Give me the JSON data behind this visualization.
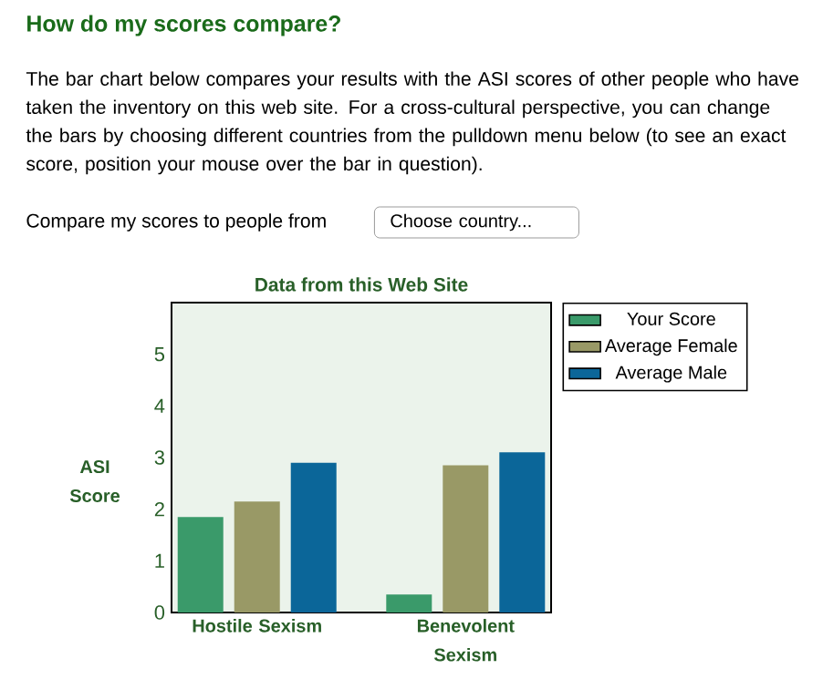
{
  "chart_data": {
    "type": "bar",
    "title": "How do my scores compare?",
    "subtitle": "Data from this Web Site",
    "annotations": [
      "The bar chart below compares your results with the ASI scores of other people who have taken the inventory on this web site. For a cross-cultural perspective, you can change the bars by choosing different countries from the pulldown menu below (to see an exact score, position your mouse over the bar in question).",
      "Compare my scores to people from",
      "Choose country..."
    ],
    "categories": [
      "Hostile Sexism",
      "Benevolent Sexism"
    ],
    "series": [
      {
        "name": "Your Score",
        "color": "#3a9a6a",
        "values": [
          1.85,
          0.35
        ]
      },
      {
        "name": "Average Female",
        "color": "#999966",
        "values": [
          2.15,
          2.85
        ]
      },
      {
        "name": "Average Male",
        "color": "#0b6699",
        "values": [
          2.9,
          3.1
        ]
      }
    ],
    "ylabel": "ASI Score",
    "ylim": [
      0,
      6
    ],
    "yticks": [
      0,
      1,
      2,
      3,
      4,
      5
    ],
    "legend": "right"
  }
}
